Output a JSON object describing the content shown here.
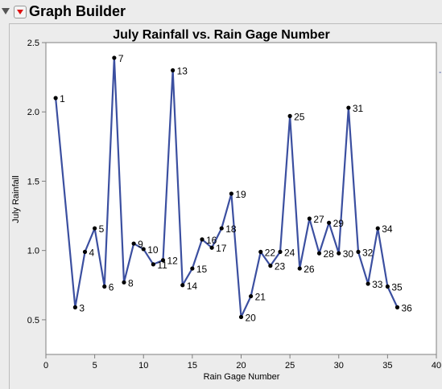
{
  "app": {
    "title": "Graph Builder"
  },
  "colors": {
    "line": "#3b4fa0",
    "marker": "#000000",
    "frame": "#7f7f7f",
    "background": "#ececec",
    "plot_background": "#ffffff"
  },
  "icons": {
    "disclosure": "disclosure-triangle-icon",
    "menu": "red-triangle-menu-icon"
  },
  "chart_data": {
    "type": "line",
    "title": "July Rainfall vs. Rain Gage Number",
    "xlabel": "Rain Gage Number",
    "ylabel": "July Rainfall",
    "xlim": [
      0,
      40
    ],
    "ylim": [
      0.25,
      2.5
    ],
    "xticks": [
      0,
      5,
      10,
      15,
      20,
      25,
      30,
      35,
      40
    ],
    "yticks": [
      0.5,
      1.0,
      1.5,
      2.0,
      2.5
    ],
    "xtick_labels": [
      "0",
      "5",
      "10",
      "15",
      "20",
      "25",
      "30",
      "35",
      "40"
    ],
    "ytick_labels": [
      "0.5",
      "1.0",
      "1.5",
      "2.0",
      "2.5"
    ],
    "grid": false,
    "legend": "none",
    "series": [
      {
        "points": [
          {
            "x": 1,
            "y": 2.1,
            "label": "1"
          },
          {
            "x": 3,
            "y": 0.59,
            "label": "3"
          },
          {
            "x": 4,
            "y": 0.99,
            "label": "4"
          },
          {
            "x": 5,
            "y": 1.16,
            "label": "5"
          },
          {
            "x": 6,
            "y": 0.74,
            "label": "6"
          },
          {
            "x": 7,
            "y": 2.39,
            "label": "7"
          },
          {
            "x": 8,
            "y": 0.77,
            "label": "8"
          },
          {
            "x": 9,
            "y": 1.05,
            "label": "9"
          },
          {
            "x": 10,
            "y": 1.01,
            "label": "10"
          },
          {
            "x": 11,
            "y": 0.9,
            "label": "11"
          },
          {
            "x": 12,
            "y": 0.93,
            "label": "12"
          },
          {
            "x": 13,
            "y": 2.3,
            "label": "13"
          },
          {
            "x": 14,
            "y": 0.75,
            "label": "14"
          },
          {
            "x": 15,
            "y": 0.87,
            "label": "15"
          },
          {
            "x": 16,
            "y": 1.08,
            "label": "16"
          },
          {
            "x": 17,
            "y": 1.02,
            "label": "17"
          },
          {
            "x": 18,
            "y": 1.16,
            "label": "18"
          },
          {
            "x": 19,
            "y": 1.41,
            "label": "19"
          },
          {
            "x": 20,
            "y": 0.52,
            "label": "20"
          },
          {
            "x": 21,
            "y": 0.67,
            "label": "21"
          },
          {
            "x": 22,
            "y": 0.99,
            "label": "22"
          },
          {
            "x": 23,
            "y": 0.89,
            "label": "23"
          },
          {
            "x": 24,
            "y": 0.99,
            "label": "24"
          },
          {
            "x": 25,
            "y": 1.97,
            "label": "25"
          },
          {
            "x": 26,
            "y": 0.87,
            "label": "26"
          },
          {
            "x": 27,
            "y": 1.23,
            "label": "27"
          },
          {
            "x": 28,
            "y": 0.98,
            "label": "28"
          },
          {
            "x": 29,
            "y": 1.2,
            "label": "29"
          },
          {
            "x": 30,
            "y": 0.98,
            "label": "30"
          },
          {
            "x": 31,
            "y": 2.03,
            "label": "31"
          },
          {
            "x": 32,
            "y": 0.99,
            "label": "32"
          },
          {
            "x": 33,
            "y": 0.76,
            "label": "33"
          },
          {
            "x": 34,
            "y": 1.16,
            "label": "34"
          },
          {
            "x": 35,
            "y": 0.74,
            "label": "35"
          },
          {
            "x": 36,
            "y": 0.59,
            "label": "36"
          }
        ]
      }
    ]
  }
}
